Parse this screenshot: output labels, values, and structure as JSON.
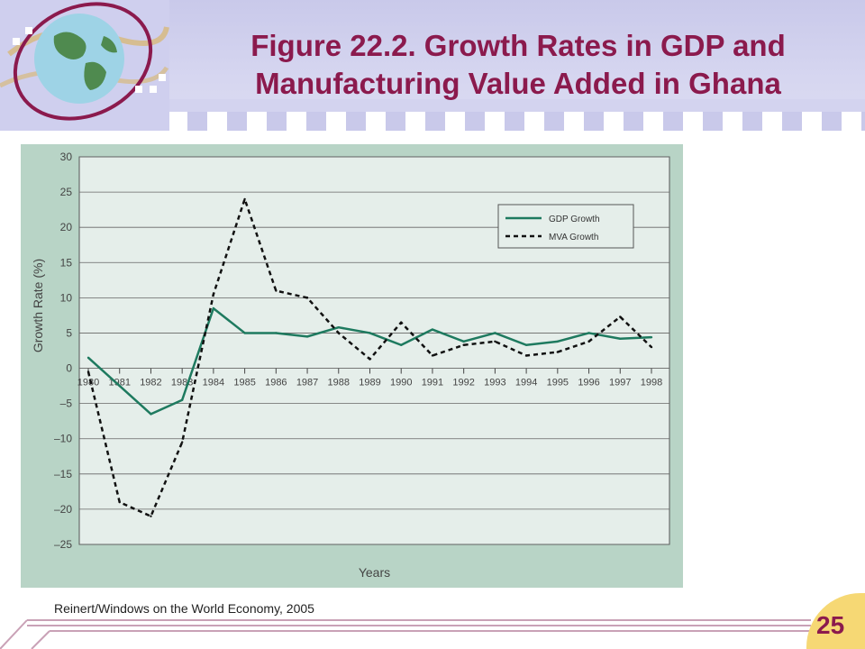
{
  "slide": {
    "title_line1": "Figure 22.2. Growth Rates in GDP and",
    "title_line2": "Manufacturing Value Added in Ghana",
    "source": "Reinert/Windows on the World Economy, 2005",
    "page_number": "25",
    "colors": {
      "title": "#8b1a4d",
      "header_band": "#c9c9ea",
      "chart_panel": "#b8d4c6",
      "plot_area": "#e5eeea",
      "page_badge": "#f6d874"
    }
  },
  "chart_data": {
    "type": "line",
    "title": "",
    "xlabel": "Years",
    "ylabel": "Growth Rate (%)",
    "ylim": [
      -25,
      30
    ],
    "yticks": [
      "30",
      "25",
      "20",
      "15",
      "10",
      "5",
      "0",
      "–5",
      "–10",
      "–15",
      "–20",
      "–25"
    ],
    "categories": [
      "1980",
      "1981",
      "1982",
      "1983",
      "1984",
      "1985",
      "1986",
      "1987",
      "1988",
      "1989",
      "1990",
      "1991",
      "1992",
      "1993",
      "1994",
      "1995",
      "1996",
      "1997",
      "1998"
    ],
    "grid": true,
    "legend_position": "top-right",
    "series": [
      {
        "name": "GDP Growth",
        "style": "solid",
        "color": "#1e7a5f",
        "values": [
          1.5,
          -2.5,
          -6.5,
          -4.5,
          8.5,
          5.0,
          5.0,
          4.5,
          5.8,
          5.0,
          3.3,
          5.5,
          3.8,
          5.0,
          3.3,
          3.8,
          5.0,
          4.2,
          4.4
        ]
      },
      {
        "name": "MVA Growth",
        "style": "dashed",
        "color": "#111111",
        "values": [
          -0.5,
          -19.0,
          -21.0,
          -10.5,
          10.5,
          24.0,
          11.0,
          10.0,
          5.0,
          1.3,
          6.5,
          1.8,
          3.3,
          3.8,
          1.8,
          2.3,
          3.8,
          7.3,
          3.0
        ]
      }
    ]
  }
}
